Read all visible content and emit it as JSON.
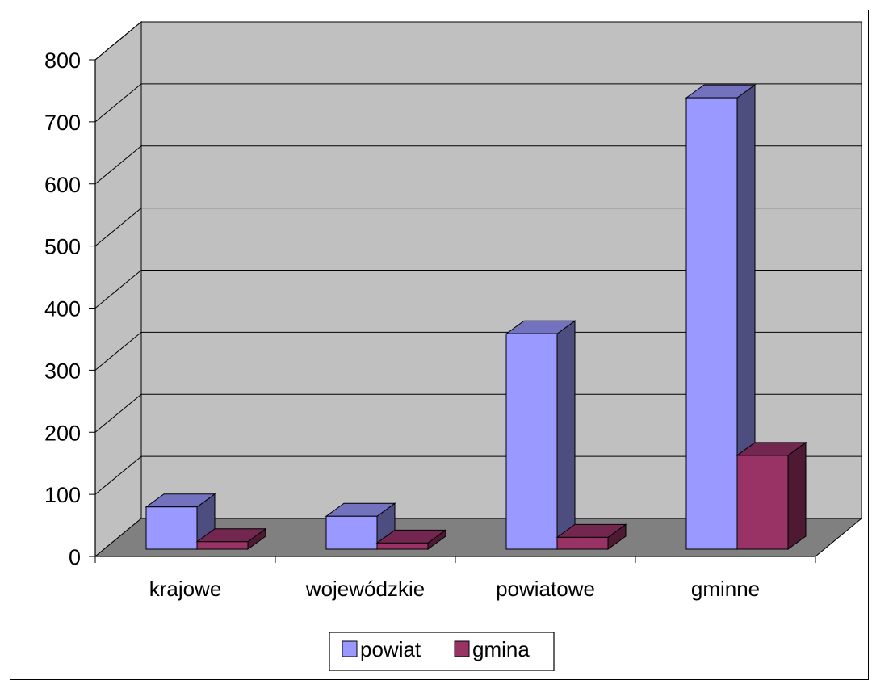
{
  "chart_data": {
    "type": "bar",
    "style": "3d-clustered-column",
    "categories": [
      "krajowe",
      "wojewódzkie",
      "powiatowe",
      "gminne"
    ],
    "series": [
      {
        "name": "powiat",
        "values": [
          68,
          53,
          347,
          727
        ],
        "color": "#9999ff"
      },
      {
        "name": "gmina",
        "values": [
          12,
          10,
          19,
          151
        ],
        "color": "#993366"
      }
    ],
    "yticks": [
      "0",
      "100",
      "200",
      "300",
      "400",
      "500",
      "600",
      "700",
      "800"
    ],
    "ylim": [
      0,
      800
    ],
    "grid": true,
    "legend": "bottom",
    "title": "",
    "xlabel": "",
    "ylabel": ""
  },
  "colors": {
    "back_wall": "#c0c0c0",
    "side_wall": "#c0c0c0",
    "floor": "#808080",
    "powiat_top": "#7272bf",
    "powiat_side": "#4d4d80",
    "gmina_top": "#732650",
    "gmina_side": "#4d1933"
  }
}
